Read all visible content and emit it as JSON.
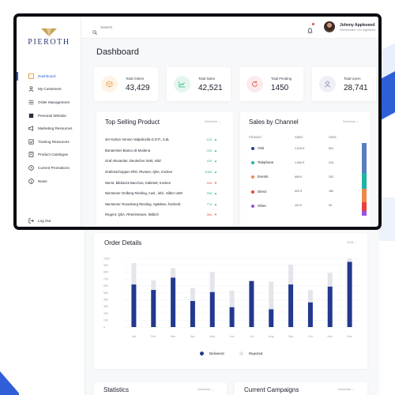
{
  "brand": {
    "logo_text": "PIEROTH",
    "accent": "#2f5fd6"
  },
  "sidebar": {
    "items": [
      {
        "label": "Dashboard",
        "icon": "dashboard-icon",
        "active": true
      },
      {
        "label": "My Customers",
        "icon": "user-icon"
      },
      {
        "label": "Order Management",
        "icon": "list-icon"
      },
      {
        "label": "Personal Website",
        "icon": "flag-icon"
      },
      {
        "label": "Marketing Resources",
        "icon": "megaphone-icon"
      },
      {
        "label": "Training Resources",
        "icon": "tag-icon"
      },
      {
        "label": "Product Catalogue",
        "icon": "book-icon"
      },
      {
        "label": "Current Promotions",
        "icon": "clock-icon"
      },
      {
        "label": "News",
        "icon": "info-icon"
      }
    ],
    "logout_label": "Log Out"
  },
  "topbar": {
    "search_placeholder": "Search",
    "user_name": "Johnny Appleseed",
    "user_role": "Weinberater von Ingelheim"
  },
  "page_title": "Dashboard",
  "stats": [
    {
      "label": "Total Orders",
      "value": "43,429",
      "icon": "box-icon",
      "color": "#f0a04b",
      "bg": "#fdf3e6"
    },
    {
      "label": "Total Sales",
      "value": "42,521",
      "icon": "trend-up-icon",
      "color": "#21b383",
      "bg": "#e6f6ee"
    },
    {
      "label": "Total Pending",
      "value": "1450",
      "icon": "refresh-icon",
      "color": "#e8423f",
      "bg": "#fdeaea"
    },
    {
      "label": "Total Users",
      "value": "28,741",
      "icon": "user-icon",
      "color": "#7d87a8",
      "bg": "#eef0f6"
    }
  ],
  "top_selling": {
    "title": "Top Selling Product",
    "period": "December",
    "rows": [
      {
        "name": "2er Karton Veneto Valpolicella D.O.P., 0,5L",
        "value": "125",
        "trend": "up"
      },
      {
        "name": "Bonammini Bianco di Modena",
        "value": "033",
        "trend": "up"
      },
      {
        "name": "Graf Alexander, Deutscher Sekt, mild",
        "value": "183",
        "trend": "up"
      },
      {
        "name": "Grafenschoppen Rhh. Rivaner, QbA, trocken",
        "value": "1083",
        "trend": "up"
      },
      {
        "name": "Nierst. Bildstock Bacchus, Kabinett, trocken",
        "value": "934",
        "trend": "down"
      },
      {
        "name": "Nierstener Oelberg Riesling, Ausl., lebl., Silber LWK",
        "value": "926",
        "trend": "up"
      },
      {
        "name": "Nierstener Rosenberg Riesling, Spätlese, feinherb",
        "value": "774",
        "trend": "up"
      },
      {
        "name": "Regent, QbA, Rheinhessen, lieblich",
        "value": "354",
        "trend": "down"
      }
    ]
  },
  "sales_by_channel": {
    "title": "Sales by Channel",
    "period": "December",
    "headers": {
      "channel": "Channel",
      "sales": "Sales",
      "units": "Units"
    },
    "rows": [
      {
        "channel": "Visit",
        "sales": "2,510 €",
        "units": "591",
        "color": "#2b3a8f"
      },
      {
        "channel": "Telephone",
        "sales": "1,550 €",
        "units": "315",
        "color": "#1fb3a3"
      },
      {
        "channel": "Events",
        "sales": "668 €",
        "units": "263",
        "color": "#f0884b"
      },
      {
        "channel": "Direct",
        "sales": "520 €",
        "units": "180",
        "color": "#e8423f"
      },
      {
        "channel": "Other",
        "sales": "401 €",
        "units": "90",
        "color": "#9b51e0"
      }
    ],
    "bar_colors": [
      "#5a7ec2",
      "#1fb3a3",
      "#f0884b",
      "#e8423f",
      "#9b51e0"
    ]
  },
  "order_details": {
    "title": "Order Details",
    "period": "2018",
    "legend": {
      "delivered": "Delivered",
      "rejected": "Rejected"
    }
  },
  "chart_data": {
    "type": "bar",
    "categories": [
      "Jan",
      "Feb",
      "Mar",
      "Apr",
      "May",
      "Jun",
      "Jul",
      "Aug",
      "Sep",
      "Oct",
      "Nov",
      "Dec"
    ],
    "series": [
      {
        "name": "Delivered",
        "values": [
          620,
          540,
          720,
          380,
          510,
          290,
          670,
          260,
          620,
          360,
          590,
          950
        ],
        "color": "#23388f"
      },
      {
        "name": "Rejected",
        "values": [
          310,
          140,
          140,
          190,
          290,
          240,
          0,
          400,
          290,
          180,
          200,
          50
        ],
        "color": "#e3e5ea"
      }
    ],
    "stacked": true,
    "y_ticks": [
      "1000",
      "900",
      "800",
      "700",
      "600",
      "500",
      "400",
      "300",
      "200",
      "100",
      "0"
    ],
    "ylim": [
      0,
      1000
    ],
    "grid": true,
    "legend_position": "bottom"
  },
  "bottom": {
    "statistics": {
      "title": "Statistics",
      "period": "December"
    },
    "campaigns": {
      "title": "Current Campaigns",
      "period": "December"
    }
  }
}
